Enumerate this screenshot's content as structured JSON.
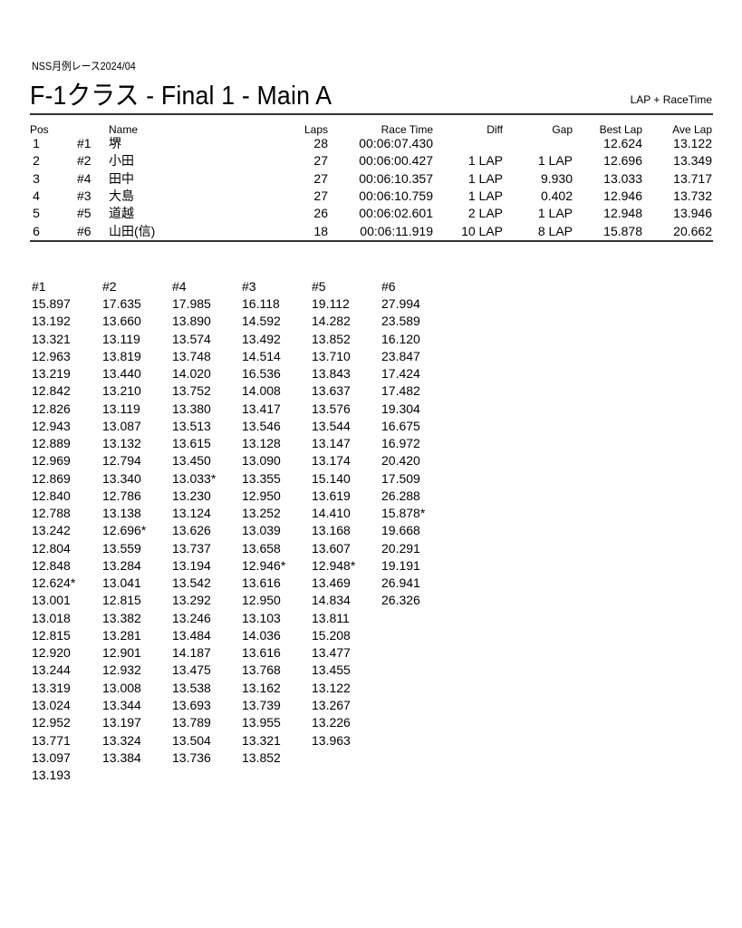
{
  "header": {
    "event": "NSS月例レース2024/04",
    "title": "F-1クラス  -  Final 1  -  Main A",
    "mode": "LAP + RaceTime"
  },
  "results": {
    "columns": [
      "Pos",
      "",
      "Name",
      "Laps",
      "Race Time",
      "Diff",
      "Gap",
      "Best Lap",
      "Ave Lap"
    ],
    "rows": [
      [
        "1",
        "#1",
        "堺",
        "28",
        "00:06:07.430",
        "",
        "",
        "12.624",
        "13.122"
      ],
      [
        "2",
        "#2",
        "小田",
        "27",
        "00:06:00.427",
        "1 LAP",
        "1 LAP",
        "12.696",
        "13.349"
      ],
      [
        "3",
        "#4",
        "田中",
        "27",
        "00:06:10.357",
        "1 LAP",
        "9.930",
        "13.033",
        "13.717"
      ],
      [
        "4",
        "#3",
        "大島",
        "27",
        "00:06:10.759",
        "1 LAP",
        "0.402",
        "12.946",
        "13.732"
      ],
      [
        "5",
        "#5",
        "道越",
        "26",
        "00:06:02.601",
        "2 LAP",
        "1 LAP",
        "12.948",
        "13.946"
      ],
      [
        "6",
        "#6",
        "山田(信)",
        "18",
        "00:06:11.919",
        "10 LAP",
        "8 LAP",
        "15.878",
        "20.662"
      ]
    ]
  },
  "laps": {
    "columns": [
      {
        "car": "#1",
        "times": [
          "15.897",
          "13.192",
          "13.321",
          "12.963",
          "13.219",
          "12.842",
          "12.826",
          "12.943",
          "12.889",
          "12.969",
          "12.869",
          "12.840",
          "12.788",
          "13.242",
          "12.804",
          "12.848",
          "12.624*",
          "13.001",
          "13.018",
          "12.815",
          "12.920",
          "13.244",
          "13.319",
          "13.024",
          "12.952",
          "13.771",
          "13.097",
          "13.193"
        ]
      },
      {
        "car": "#2",
        "times": [
          "17.635",
          "13.660",
          "13.119",
          "13.819",
          "13.440",
          "13.210",
          "13.119",
          "13.087",
          "13.132",
          "12.794",
          "13.340",
          "12.786",
          "13.138",
          "12.696*",
          "13.559",
          "13.284",
          "13.041",
          "12.815",
          "13.382",
          "13.281",
          "12.901",
          "12.932",
          "13.008",
          "13.344",
          "13.197",
          "13.324",
          "13.384"
        ]
      },
      {
        "car": "#4",
        "times": [
          "17.985",
          "13.890",
          "13.574",
          "13.748",
          "14.020",
          "13.752",
          "13.380",
          "13.513",
          "13.615",
          "13.450",
          "13.033*",
          "13.230",
          "13.124",
          "13.626",
          "13.737",
          "13.194",
          "13.542",
          "13.292",
          "13.246",
          "13.484",
          "14.187",
          "13.475",
          "13.538",
          "13.693",
          "13.789",
          "13.504",
          "13.736"
        ]
      },
      {
        "car": "#3",
        "times": [
          "16.118",
          "14.592",
          "13.492",
          "14.514",
          "16.536",
          "14.008",
          "13.417",
          "13.546",
          "13.128",
          "13.090",
          "13.355",
          "12.950",
          "13.252",
          "13.039",
          "13.658",
          "12.946*",
          "13.616",
          "12.950",
          "13.103",
          "14.036",
          "13.616",
          "13.768",
          "13.162",
          "13.739",
          "13.955",
          "13.321",
          "13.852"
        ]
      },
      {
        "car": "#5",
        "times": [
          "19.112",
          "14.282",
          "13.852",
          "13.710",
          "13.843",
          "13.637",
          "13.576",
          "13.544",
          "13.147",
          "13.174",
          "15.140",
          "13.619",
          "14.410",
          "13.168",
          "13.607",
          "12.948*",
          "13.469",
          "14.834",
          "13.811",
          "15.208",
          "13.477",
          "13.455",
          "13.122",
          "13.267",
          "13.226",
          "13.963"
        ]
      },
      {
        "car": "#6",
        "times": [
          "27.994",
          "23.589",
          "16.120",
          "23.847",
          "17.424",
          "17.482",
          "19.304",
          "16.675",
          "16.972",
          "20.420",
          "17.509",
          "26.288",
          "15.878*",
          "19.668",
          "20.291",
          "19.191",
          "26.941",
          "26.326"
        ]
      }
    ]
  }
}
